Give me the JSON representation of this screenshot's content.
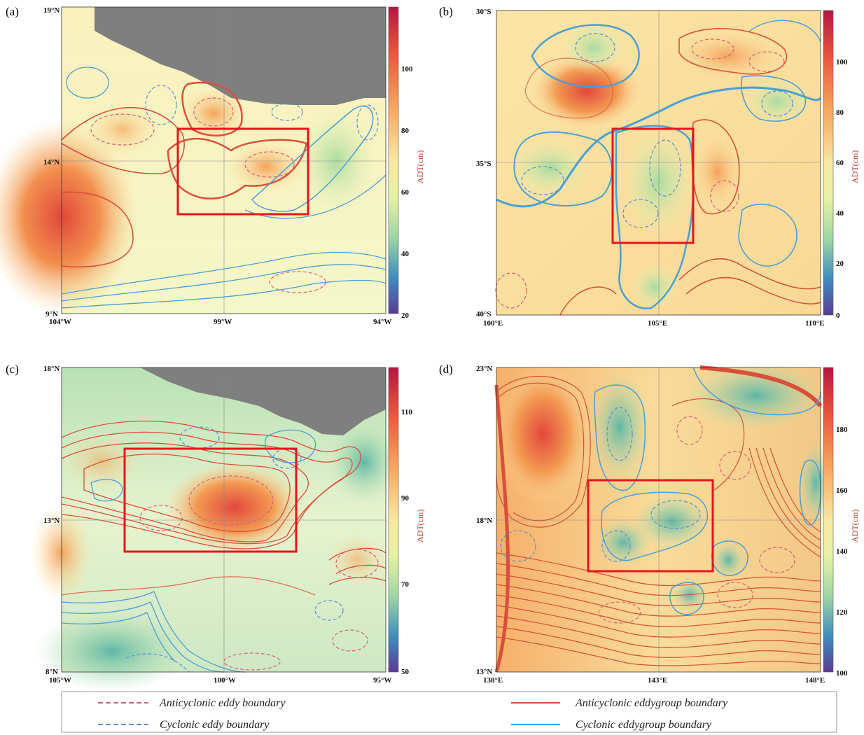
{
  "panels": [
    {
      "id": "a",
      "label": "(a)",
      "y_ticks": [
        "19°N",
        "14°N",
        "9°N"
      ],
      "x_ticks": [
        "104°W",
        "99°W",
        "94°W"
      ],
      "colorbar": {
        "label": "ADT(cm)",
        "ticks": [
          "100",
          "80",
          "60",
          "40",
          "20"
        ]
      }
    },
    {
      "id": "b",
      "label": "(b)",
      "y_ticks": [
        "30°S",
        "35°S",
        "40°S"
      ],
      "x_ticks": [
        "100°E",
        "105°E",
        "110°E"
      ],
      "colorbar": {
        "label": "ADT(cm)",
        "ticks": [
          "100",
          "80",
          "60",
          "40",
          "20",
          "0"
        ]
      }
    },
    {
      "id": "c",
      "label": "(c)",
      "y_ticks": [
        "18°N",
        "13°N",
        "8°N"
      ],
      "x_ticks": [
        "105°W",
        "100°W",
        "95°W"
      ],
      "colorbar": {
        "label": "ADT(cm)",
        "ticks": [
          "110",
          "90",
          "70",
          "50"
        ]
      }
    },
    {
      "id": "d",
      "label": "(d)",
      "y_ticks": [
        "23°N",
        "18°N",
        "13°N"
      ],
      "x_ticks": [
        "138°E",
        "143°E",
        "148°E"
      ],
      "colorbar": {
        "label": "ADT(cm)",
        "ticks": [
          "180",
          "160",
          "140",
          "120",
          "100"
        ]
      }
    }
  ],
  "legend": {
    "anticyclonic_eddy": "Anticyclonic eddy boundary",
    "cyclonic_eddy": "Cyclonic eddy boundary",
    "anticyclonic_group": "Anticyclonic eddygroup boundary",
    "cyclonic_group": "Cyclonic eddygroup boundary"
  },
  "colors": {
    "anticyclonic": "#d9503a",
    "cyclonic": "#4a9fd6",
    "anticyclonic_dashed": "#d9607a",
    "cyclonic_dashed": "#5a8fd6",
    "highlight_box": "#e8141a",
    "land": "#7f7f7f"
  }
}
